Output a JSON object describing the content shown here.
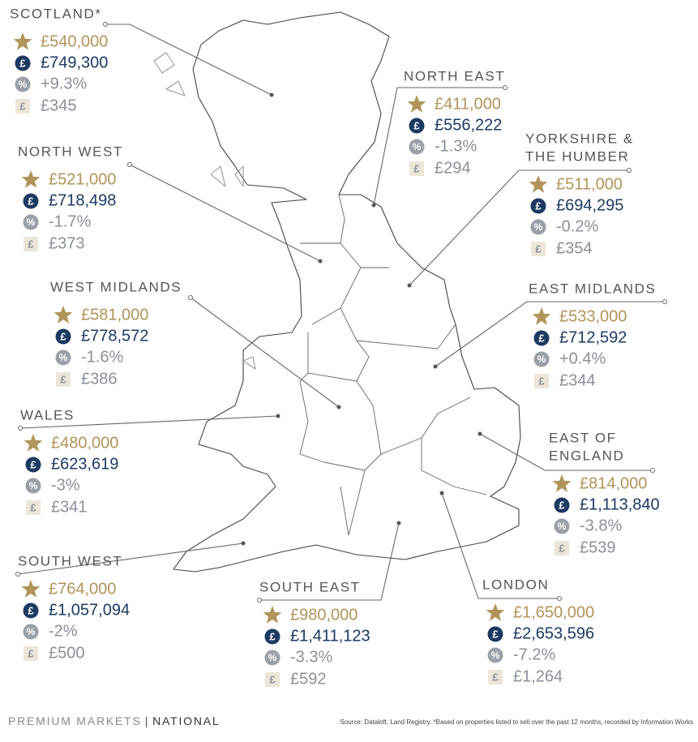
{
  "regions": [
    {
      "name_lines": [
        "SCOTLAND*"
      ],
      "price": "£540,000",
      "value": "£749,300",
      "change": "+9.3%",
      "rent": "£345"
    },
    {
      "name_lines": [
        "NORTH WEST"
      ],
      "price": "£521,000",
      "value": "£718,498",
      "change": "-1.7%",
      "rent": "£373"
    },
    {
      "name_lines": [
        "WEST MIDLANDS"
      ],
      "price": "£581,000",
      "value": "£778,572",
      "change": "-1.6%",
      "rent": "£386"
    },
    {
      "name_lines": [
        "WALES"
      ],
      "price": "£480,000",
      "value": "£623,619",
      "change": "-3%",
      "rent": "£341"
    },
    {
      "name_lines": [
        "SOUTH WEST"
      ],
      "price": "£764,000",
      "value": "£1,057,094",
      "change": "-2%",
      "rent": "£500"
    },
    {
      "name_lines": [
        "NORTH EAST"
      ],
      "price": "£411,000",
      "value": "£556,222",
      "change": "-1.3%",
      "rent": "£294"
    },
    {
      "name_lines": [
        "YORKSHIRE &",
        "THE HUMBER"
      ],
      "price": "£511,000",
      "value": "£694,295",
      "change": "-0.2%",
      "rent": "£354"
    },
    {
      "name_lines": [
        "EAST MIDLANDS"
      ],
      "price": "£533,000",
      "value": "£712,592",
      "change": "+0.4%",
      "rent": "£344"
    },
    {
      "name_lines": [
        "EAST OF",
        "ENGLAND"
      ],
      "price": "£814,000",
      "value": "£1,113,840",
      "change": "-3.8%",
      "rent": "£539"
    },
    {
      "name_lines": [
        "SOUTH EAST"
      ],
      "price": "£980,000",
      "value": "£1,411,123",
      "change": "-3.3%",
      "rent": "£592"
    },
    {
      "name_lines": [
        "LONDON"
      ],
      "price": "£1,650,000",
      "value": "£2,653,596",
      "change": "-7.2%",
      "rent": "£1,264"
    }
  ],
  "icons": {
    "pound": "£",
    "percent": "%"
  },
  "footer": {
    "brand": "PREMIUM MARKETS",
    "separator": "|",
    "section": "NATIONAL",
    "source": "Source: Dataloft, Land Registry. *Based on properties listed to sell over the past 12 months, recorded by Information Works"
  }
}
